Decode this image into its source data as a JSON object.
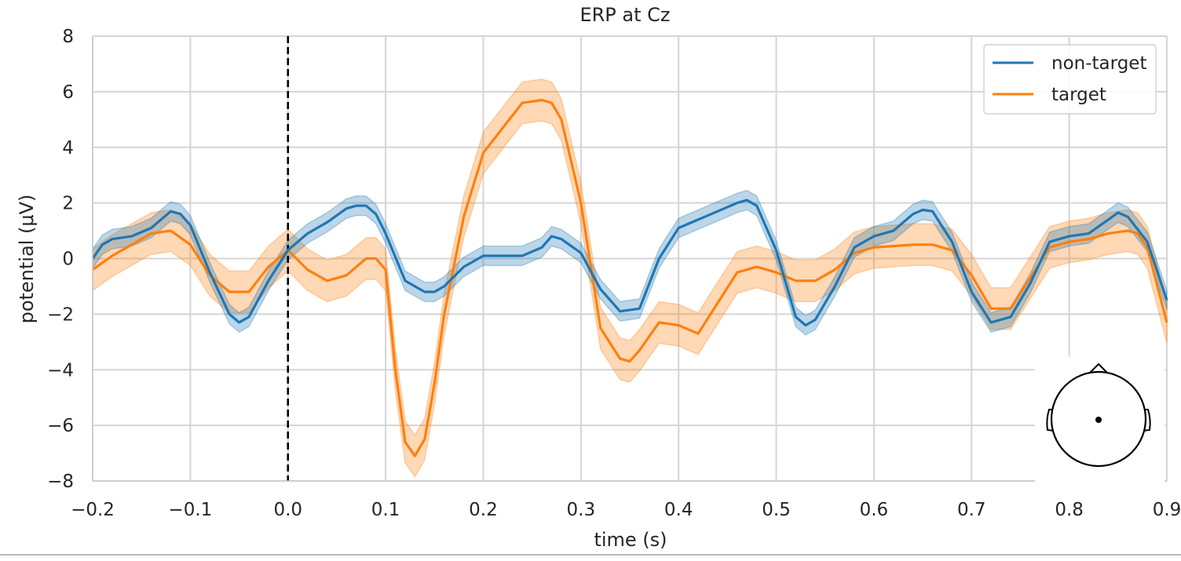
{
  "chart_data": {
    "type": "line",
    "title": "ERP at Cz",
    "xlabel": "time (s)",
    "ylabel": "potential (μV)",
    "xlim": [
      -0.2,
      0.9
    ],
    "ylim": [
      -8,
      8
    ],
    "xticks": [
      -0.2,
      -0.1,
      0.0,
      0.1,
      0.2,
      0.3,
      0.4,
      0.5,
      0.6,
      0.7,
      0.8,
      0.9
    ],
    "xtick_labels": [
      "−0.2",
      "−0.1",
      "0.0",
      "0.1",
      "0.2",
      "0.3",
      "0.4",
      "0.5",
      "0.6",
      "0.7",
      "0.8",
      "0.9"
    ],
    "yticks": [
      -8,
      -6,
      -4,
      -2,
      0,
      2,
      4,
      6,
      8
    ],
    "ytick_labels": [
      "−8",
      "−6",
      "−4",
      "−2",
      "0",
      "2",
      "4",
      "6",
      "8"
    ],
    "grid": true,
    "vline_x": 0.0,
    "legend_position": "top-right",
    "sensor_inset": "head outline with Cz sensor dot",
    "series": [
      {
        "name": "non-target",
        "color": "#1f77b4",
        "ci_halfwidth": 0.35,
        "x": [
          -0.2,
          -0.19,
          -0.18,
          -0.16,
          -0.14,
          -0.12,
          -0.11,
          -0.1,
          -0.08,
          -0.06,
          -0.05,
          -0.04,
          -0.02,
          0.0,
          0.02,
          0.04,
          0.06,
          0.07,
          0.08,
          0.09,
          0.1,
          0.12,
          0.14,
          0.15,
          0.16,
          0.18,
          0.2,
          0.22,
          0.24,
          0.26,
          0.27,
          0.28,
          0.3,
          0.32,
          0.34,
          0.36,
          0.38,
          0.4,
          0.42,
          0.44,
          0.46,
          0.47,
          0.48,
          0.5,
          0.52,
          0.53,
          0.54,
          0.56,
          0.58,
          0.6,
          0.62,
          0.64,
          0.65,
          0.66,
          0.68,
          0.7,
          0.72,
          0.74,
          0.76,
          0.78,
          0.8,
          0.82,
          0.84,
          0.85,
          0.86,
          0.88,
          0.9
        ],
        "values": [
          0.0,
          0.5,
          0.7,
          0.8,
          1.1,
          1.7,
          1.6,
          1.2,
          -0.5,
          -2.0,
          -2.3,
          -2.1,
          -0.8,
          0.3,
          0.9,
          1.3,
          1.8,
          1.9,
          1.9,
          1.6,
          0.9,
          -0.8,
          -1.2,
          -1.2,
          -1.0,
          -0.3,
          0.1,
          0.1,
          0.1,
          0.4,
          0.8,
          0.7,
          0.2,
          -1.1,
          -1.9,
          -1.8,
          0.0,
          1.1,
          1.4,
          1.7,
          2.0,
          2.1,
          1.9,
          0.3,
          -2.1,
          -2.4,
          -2.2,
          -1.0,
          0.4,
          0.8,
          1.0,
          1.6,
          1.75,
          1.7,
          0.6,
          -1.2,
          -2.3,
          -2.1,
          -0.9,
          0.6,
          0.8,
          0.9,
          1.4,
          1.65,
          1.5,
          0.6,
          -1.5
        ]
      },
      {
        "name": "target",
        "color": "#ff7f0e",
        "ci_halfwidth": 0.75,
        "x": [
          -0.2,
          -0.18,
          -0.16,
          -0.14,
          -0.12,
          -0.1,
          -0.08,
          -0.06,
          -0.04,
          -0.02,
          0.0,
          0.02,
          0.04,
          0.06,
          0.08,
          0.09,
          0.1,
          0.11,
          0.12,
          0.13,
          0.14,
          0.15,
          0.16,
          0.18,
          0.2,
          0.22,
          0.24,
          0.26,
          0.27,
          0.28,
          0.3,
          0.32,
          0.34,
          0.35,
          0.36,
          0.38,
          0.4,
          0.42,
          0.44,
          0.46,
          0.48,
          0.5,
          0.52,
          0.54,
          0.56,
          0.58,
          0.6,
          0.62,
          0.64,
          0.66,
          0.68,
          0.7,
          0.72,
          0.74,
          0.76,
          0.78,
          0.8,
          0.82,
          0.84,
          0.86,
          0.87,
          0.88,
          0.9
        ],
        "values": [
          -0.4,
          0.1,
          0.5,
          0.9,
          1.0,
          0.5,
          -0.6,
          -1.2,
          -1.2,
          -0.3,
          0.3,
          -0.4,
          -0.8,
          -0.6,
          0.0,
          0.0,
          -0.4,
          -4.0,
          -6.6,
          -7.1,
          -6.5,
          -4.5,
          -2.0,
          1.5,
          3.8,
          4.7,
          5.6,
          5.7,
          5.6,
          5.0,
          2.0,
          -2.5,
          -3.6,
          -3.7,
          -3.3,
          -2.3,
          -2.4,
          -2.7,
          -1.6,
          -0.5,
          -0.3,
          -0.5,
          -0.8,
          -0.8,
          -0.4,
          0.2,
          0.4,
          0.45,
          0.5,
          0.5,
          0.3,
          -0.6,
          -1.8,
          -1.8,
          -0.7,
          0.4,
          0.6,
          0.7,
          0.9,
          1.0,
          0.9,
          0.4,
          -2.3
        ]
      }
    ]
  }
}
